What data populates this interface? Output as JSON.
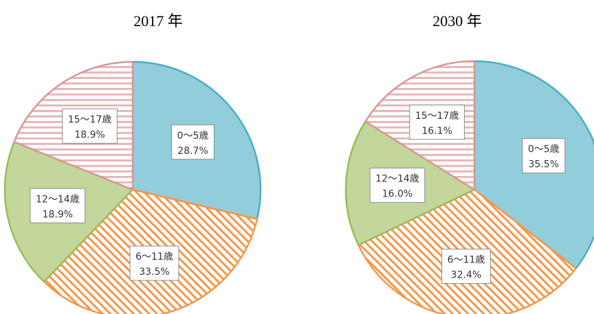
{
  "chart_data": [
    {
      "type": "pie",
      "title": "2017 年",
      "categories": [
        "0〜5歳",
        "6〜11歳",
        "12〜14歳",
        "15〜17歳"
      ],
      "values": [
        28.7,
        33.5,
        18.9,
        18.9
      ],
      "value_labels": [
        "28.7%",
        "33.5%",
        "18.9%",
        "18.9%"
      ],
      "colors": [
        "#92cddc",
        "#f79646",
        "#c3d69b",
        "#e6b9b8"
      ],
      "edge_colors": [
        "#4bacc6",
        "#f79646",
        "#9bbb59",
        "#d99694"
      ],
      "hatch": [
        "solid",
        "diagonal",
        "solid",
        "horizontal"
      ]
    },
    {
      "type": "pie",
      "title": "2030 年",
      "categories": [
        "0〜5歳",
        "6〜11歳",
        "12〜14歳",
        "15〜17歳"
      ],
      "values": [
        35.5,
        32.4,
        16.0,
        16.1
      ],
      "value_labels": [
        "35.5%",
        "32.4%",
        "16.0%",
        "16.1%"
      ],
      "colors": [
        "#92cddc",
        "#f79646",
        "#c3d69b",
        "#e6b9b8"
      ],
      "edge_colors": [
        "#4bacc6",
        "#f79646",
        "#9bbb59",
        "#d99694"
      ],
      "hatch": [
        "solid",
        "diagonal",
        "solid",
        "horizontal"
      ]
    }
  ]
}
